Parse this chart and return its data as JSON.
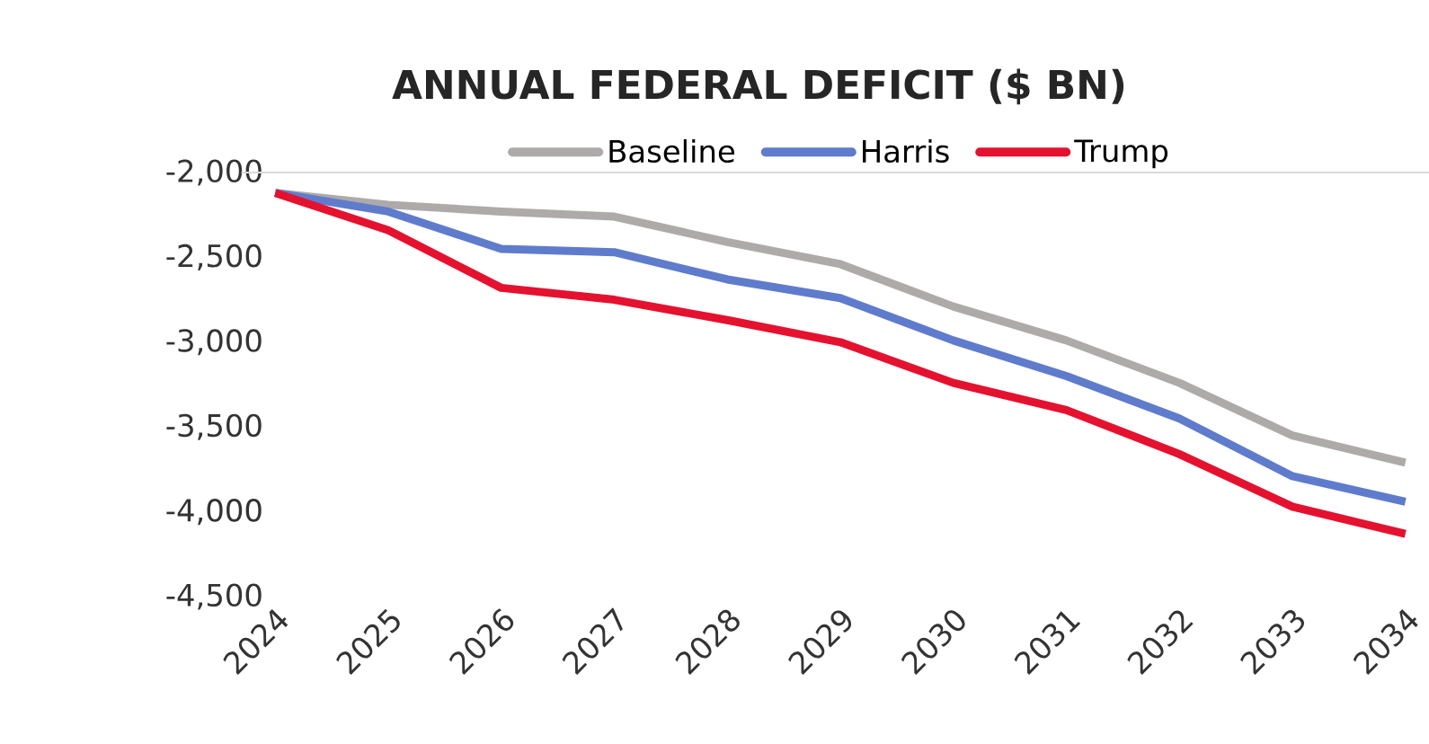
{
  "chart_data": {
    "type": "line",
    "title": "ANNUAL FEDERAL DEFICIT ($ BN)",
    "categories": [
      "2024",
      "2025",
      "2026",
      "2027",
      "2028",
      "2029",
      "2030",
      "2031",
      "2032",
      "2033",
      "2034"
    ],
    "series": [
      {
        "name": "Baseline",
        "color": "#aeaaaa",
        "values": [
          -2120,
          -2190,
          -2230,
          -2260,
          -2410,
          -2540,
          -2790,
          -2990,
          -3240,
          -3550,
          -3710
        ]
      },
      {
        "name": "Harris",
        "color": "#5f7bcc",
        "values": [
          -2120,
          -2230,
          -2450,
          -2470,
          -2630,
          -2740,
          -2990,
          -3200,
          -3450,
          -3790,
          -3940
        ]
      },
      {
        "name": "Trump",
        "color": "#e4122f",
        "values": [
          -2120,
          -2340,
          -2680,
          -2750,
          -2870,
          -3000,
          -3240,
          -3400,
          -3660,
          -3970,
          -4130
        ]
      }
    ],
    "ylim": [
      -4500,
      -2000
    ],
    "yticks": [
      {
        "value": -2000,
        "label": "-2,000"
      },
      {
        "value": -2500,
        "label": "-2,500"
      },
      {
        "value": -3000,
        "label": "-3,000"
      },
      {
        "value": -3500,
        "label": "-3,500"
      },
      {
        "value": -4000,
        "label": "-4,000"
      },
      {
        "value": -4500,
        "label": "-4,500"
      }
    ],
    "ref_lines": [
      {
        "axis": "y",
        "value": -2000,
        "color": "#d9d9d9"
      }
    ],
    "legend": "top",
    "grid": false,
    "marker": "none",
    "line_style": "solid"
  }
}
